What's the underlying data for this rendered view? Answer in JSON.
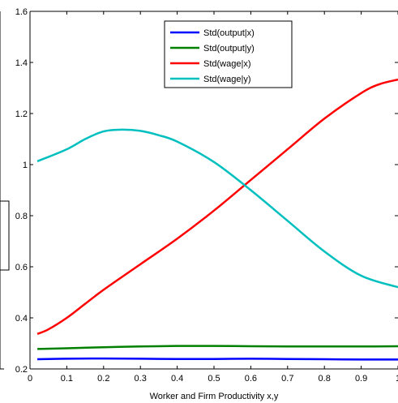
{
  "chart_data": {
    "type": "line",
    "xlabel": "Worker and Firm Productivity x,y",
    "ylabel": "",
    "xlim": [
      0,
      1
    ],
    "ylim": [
      0.2,
      1.6
    ],
    "xticks": [
      "0",
      "0.1",
      "0.2",
      "0.3",
      "0.4",
      "0.5",
      "0.6",
      "0.7",
      "0.8",
      "0.9",
      "1"
    ],
    "yticks": [
      "0.2",
      "0.4",
      "0.6",
      "0.8",
      "1",
      "1.2",
      "1.4",
      "1.6"
    ],
    "grid": false,
    "legend_position": "top-center",
    "series": [
      {
        "name": "Std(output|x)",
        "color": "#0000ff",
        "x": [
          0.02,
          0.1,
          0.2,
          0.3,
          0.4,
          0.5,
          0.6,
          0.7,
          0.8,
          0.9,
          1.0
        ],
        "y": [
          0.238,
          0.24,
          0.241,
          0.24,
          0.239,
          0.239,
          0.24,
          0.239,
          0.238,
          0.237,
          0.237
        ]
      },
      {
        "name": "Std(output|y)",
        "color": "#008000",
        "x": [
          0.02,
          0.1,
          0.2,
          0.3,
          0.4,
          0.5,
          0.6,
          0.7,
          0.8,
          0.9,
          1.0
        ],
        "y": [
          0.278,
          0.281,
          0.285,
          0.288,
          0.29,
          0.29,
          0.289,
          0.288,
          0.288,
          0.288,
          0.289
        ]
      },
      {
        "name": "Std(wage|x)",
        "color": "#ff0000",
        "x": [
          0.02,
          0.05,
          0.1,
          0.15,
          0.2,
          0.3,
          0.4,
          0.5,
          0.6,
          0.7,
          0.8,
          0.9,
          0.95,
          1.0
        ],
        "y": [
          0.337,
          0.355,
          0.4,
          0.455,
          0.51,
          0.61,
          0.71,
          0.82,
          0.94,
          1.06,
          1.18,
          1.28,
          1.315,
          1.333
        ]
      },
      {
        "name": "Std(wage|y)",
        "color": "#00bfbf",
        "x": [
          0.02,
          0.1,
          0.15,
          0.2,
          0.25,
          0.3,
          0.35,
          0.4,
          0.5,
          0.6,
          0.7,
          0.8,
          0.9,
          1.0
        ],
        "y": [
          1.013,
          1.06,
          1.1,
          1.13,
          1.137,
          1.132,
          1.115,
          1.09,
          1.01,
          0.9,
          0.78,
          0.66,
          0.565,
          0.52
        ]
      }
    ]
  }
}
